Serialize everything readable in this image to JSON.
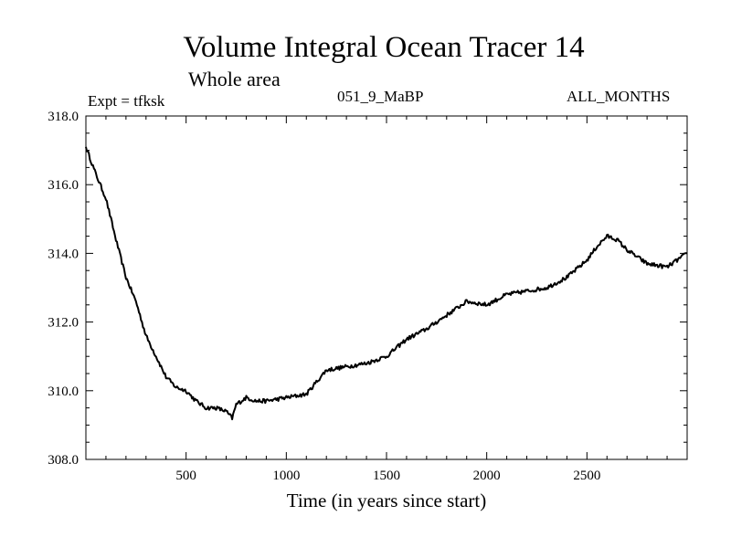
{
  "chart_data": {
    "type": "line",
    "title": "Volume Integral Ocean Tracer 14",
    "subtitle": "Whole area",
    "annotations": {
      "experiment": "Expt = tfksk",
      "run": "051_9_MaBP",
      "months": "ALL_MONTHS"
    },
    "xlabel": "Time (in years since start)",
    "ylabel": "",
    "xlim": [
      0,
      3000
    ],
    "ylim": [
      308.0,
      318.0
    ],
    "xticks": [
      500,
      1000,
      1500,
      2000,
      2500
    ],
    "xtick_labels": [
      "500",
      "1000",
      "1500",
      "2000",
      "2500"
    ],
    "yticks": [
      308.0,
      310.0,
      312.0,
      314.0,
      316.0,
      318.0
    ],
    "ytick_labels": [
      "308.0",
      "310.0",
      "312.0",
      "314.0",
      "316.0",
      "318.0"
    ],
    "series": [
      {
        "name": "Volume Integral Ocean Tracer 14",
        "x": [
          0,
          50,
          100,
          150,
          200,
          250,
          300,
          350,
          400,
          450,
          500,
          550,
          600,
          650,
          700,
          730,
          750,
          800,
          850,
          900,
          1000,
          1100,
          1200,
          1300,
          1400,
          1500,
          1600,
          1700,
          1800,
          1900,
          2000,
          2100,
          2200,
          2300,
          2400,
          2500,
          2550,
          2600,
          2650,
          2700,
          2800,
          2900,
          3000
        ],
        "y": [
          317.1,
          316.3,
          315.6,
          314.4,
          313.3,
          312.6,
          311.6,
          311.0,
          310.4,
          310.1,
          310.0,
          309.7,
          309.5,
          309.5,
          309.4,
          309.2,
          309.6,
          309.8,
          309.7,
          309.7,
          309.8,
          309.9,
          310.6,
          310.7,
          310.8,
          311.0,
          311.5,
          311.8,
          312.2,
          312.6,
          312.5,
          312.8,
          312.9,
          313.0,
          313.3,
          313.8,
          314.2,
          314.5,
          314.4,
          314.1,
          313.7,
          313.6,
          314.0
        ]
      }
    ]
  }
}
